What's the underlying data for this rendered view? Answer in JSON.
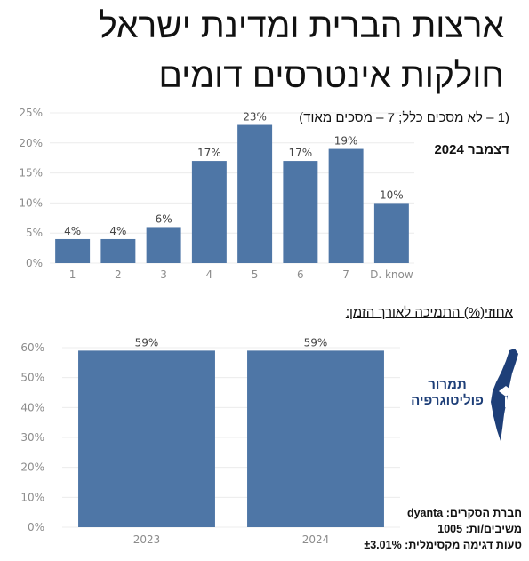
{
  "title_line1": "ארצות הברית ומדינת ישראל",
  "title_line2": "חולקות אינטרסים דומים",
  "scale_note": "(1 – לא מסכים כלל; 7 – מסכים מאוד)",
  "date_note": "דצמבר 2024",
  "section_heading": "אחוזי(%) התמיכה לאורך הזמן:",
  "logo": {
    "line1": "תמרור",
    "line2": "פוליטוגרפיה",
    "color": "#1e3f78",
    "icon": "israel-map-road-sign-icon"
  },
  "footer": {
    "company": "חברת הסקרים: dyanta",
    "respondents": "משיבים/ות: 1005",
    "margin": "טעות דגימה מקסימלית: ±3.01%"
  },
  "colors": {
    "bar": "#4e76a6",
    "tick": "#8c8c8c",
    "grid": "#ececec"
  },
  "chart_data": [
    {
      "type": "bar",
      "categories": [
        "1",
        "2",
        "3",
        "4",
        "5",
        "6",
        "7",
        "D. know"
      ],
      "values": [
        4,
        4,
        6,
        17,
        23,
        17,
        19,
        10
      ],
      "value_labels": [
        "4%",
        "4%",
        "6%",
        "17%",
        "23%",
        "17%",
        "19%",
        "10%"
      ],
      "ylim": [
        0,
        25
      ],
      "yticks": [
        "0%",
        "5%",
        "10%",
        "15%",
        "20%",
        "25%"
      ],
      "grid": true
    },
    {
      "type": "bar",
      "categories": [
        "2023",
        "2024"
      ],
      "values": [
        59,
        59
      ],
      "value_labels": [
        "59%",
        "59%"
      ],
      "ylim": [
        0,
        60
      ],
      "yticks": [
        "0%",
        "10%",
        "20%",
        "30%",
        "40%",
        "50%",
        "60%"
      ],
      "grid": true
    }
  ]
}
